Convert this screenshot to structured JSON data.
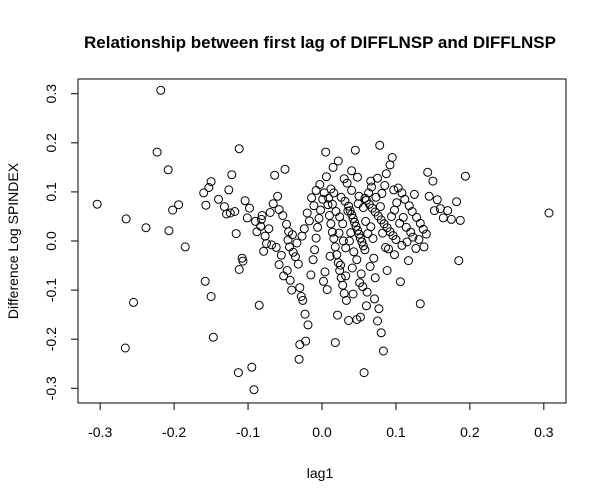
{
  "chart_data": {
    "type": "scatter",
    "title": "Relationship between first lag of DIFFLNSP and DIFFLNSP",
    "xlabel": "lag1",
    "ylabel": "Difference Log SPINDEX",
    "xlim": [
      -0.33,
      0.33
    ],
    "ylim": [
      -0.33,
      0.33
    ],
    "xticks": [
      -0.3,
      -0.2,
      -0.1,
      0.0,
      0.1,
      0.2,
      0.3
    ],
    "yticks": [
      -0.3,
      -0.2,
      -0.1,
      0.0,
      0.1,
      0.2,
      0.3
    ],
    "xtick_labels": [
      "-0.3",
      "-0.2",
      "-0.1",
      "0.0",
      "0.1",
      "0.2",
      "0.3"
    ],
    "ytick_labels": [
      "-0.3",
      "-0.2",
      "-0.1",
      "0.0",
      "0.1",
      "0.2",
      "0.3"
    ],
    "grid": false,
    "marker": "open-circle",
    "points": [
      [
        -0.304,
        0.075
      ],
      [
        -0.265,
        0.045
      ],
      [
        -0.266,
        -0.218
      ],
      [
        -0.255,
        -0.125
      ],
      [
        -0.238,
        0.027
      ],
      [
        -0.218,
        0.307
      ],
      [
        -0.223,
        0.181
      ],
      [
        -0.208,
        0.145
      ],
      [
        -0.207,
        0.021
      ],
      [
        -0.202,
        0.063
      ],
      [
        -0.194,
        0.074
      ],
      [
        -0.185,
        -0.012
      ],
      [
        -0.16,
        0.098
      ],
      [
        -0.157,
        0.073
      ],
      [
        -0.153,
        0.109
      ],
      [
        -0.15,
        0.121
      ],
      [
        -0.158,
        -0.082
      ],
      [
        -0.15,
        -0.113
      ],
      [
        -0.147,
        -0.196
      ],
      [
        -0.129,
        0.055
      ],
      [
        -0.126,
        0.104
      ],
      [
        -0.122,
        0.135
      ],
      [
        -0.124,
        0.057
      ],
      [
        -0.112,
        0.188
      ],
      [
        -0.112,
        -0.058
      ],
      [
        -0.108,
        -0.035
      ],
      [
        -0.107,
        -0.041
      ],
      [
        -0.101,
        0.047
      ],
      [
        -0.095,
        -0.257
      ],
      [
        -0.092,
        -0.303
      ],
      [
        -0.085,
        -0.131
      ],
      [
        -0.113,
        -0.268
      ],
      [
        -0.088,
        0.019
      ],
      [
        -0.083,
        0.03
      ],
      [
        -0.082,
        0.044
      ],
      [
        -0.081,
        0.052
      ],
      [
        -0.079,
        -0.021
      ],
      [
        -0.075,
        -0.005
      ],
      [
        -0.07,
        0.058
      ],
      [
        -0.066,
        0.076
      ],
      [
        -0.064,
        0.134
      ],
      [
        -0.06,
        0.091
      ],
      [
        -0.058,
        0.064
      ],
      [
        -0.053,
        0.052
      ],
      [
        -0.05,
        0.146
      ],
      [
        -0.048,
        0.034
      ],
      [
        -0.046,
        0.002
      ],
      [
        -0.044,
        -0.012
      ],
      [
        -0.039,
        -0.023
      ],
      [
        -0.036,
        -0.032
      ],
      [
        -0.032,
        -0.047
      ],
      [
        -0.03,
        -0.095
      ],
      [
        -0.028,
        -0.113
      ],
      [
        -0.026,
        -0.121
      ],
      [
        -0.023,
        -0.149
      ],
      [
        -0.019,
        -0.171
      ],
      [
        -0.03,
        -0.211
      ],
      [
        -0.031,
        -0.241
      ],
      [
        -0.022,
        -0.204
      ],
      [
        -0.015,
        -0.069
      ],
      [
        -0.012,
        -0.038
      ],
      [
        -0.01,
        -0.018
      ],
      [
        -0.008,
        0.006
      ],
      [
        -0.006,
        0.028
      ],
      [
        -0.004,
        0.046
      ],
      [
        -0.002,
        0.063
      ],
      [
        0.001,
        0.085
      ],
      [
        0.003,
        0.098
      ],
      [
        0.005,
        0.181
      ],
      [
        0.008,
        0.074
      ],
      [
        0.01,
        0.052
      ],
      [
        0.012,
        0.035
      ],
      [
        0.014,
        0.018
      ],
      [
        0.016,
        0.005
      ],
      [
        0.018,
        -0.012
      ],
      [
        0.02,
        -0.028
      ],
      [
        0.022,
        -0.044
      ],
      [
        0.024,
        -0.06
      ],
      [
        0.026,
        -0.075
      ],
      [
        0.028,
        -0.09
      ],
      [
        0.03,
        -0.107
      ],
      [
        0.033,
        -0.121
      ],
      [
        0.021,
        -0.151
      ],
      [
        0.018,
        -0.207
      ],
      [
        0.036,
        0.071
      ],
      [
        0.038,
        0.062
      ],
      [
        0.04,
        0.054
      ],
      [
        0.042,
        0.046
      ],
      [
        0.044,
        0.038
      ],
      [
        0.046,
        0.03
      ],
      [
        0.048,
        0.022
      ],
      [
        0.05,
        0.014
      ],
      [
        0.052,
        0.006
      ],
      [
        0.054,
        -0.002
      ],
      [
        0.056,
        -0.01
      ],
      [
        0.058,
        -0.018
      ],
      [
        0.034,
        0.118
      ],
      [
        0.03,
        0.127
      ],
      [
        0.04,
        0.103
      ],
      [
        0.045,
        0.185
      ],
      [
        0.05,
        0.091
      ],
      [
        0.06,
        0.083
      ],
      [
        0.064,
        0.075
      ],
      [
        0.068,
        0.067
      ],
      [
        0.072,
        0.059
      ],
      [
        0.076,
        0.051
      ],
      [
        0.08,
        0.043
      ],
      [
        0.084,
        0.035
      ],
      [
        0.088,
        0.027
      ],
      [
        0.092,
        0.019
      ],
      [
        0.096,
        0.011
      ],
      [
        0.1,
        0.003
      ],
      [
        0.078,
        0.195
      ],
      [
        0.095,
        0.17
      ],
      [
        0.092,
        0.155
      ],
      [
        0.075,
        0.128
      ],
      [
        0.085,
        0.113
      ],
      [
        0.103,
        0.108
      ],
      [
        0.108,
        0.098
      ],
      [
        0.112,
        0.085
      ],
      [
        0.118,
        0.072
      ],
      [
        0.122,
        0.06
      ],
      [
        0.128,
        0.048
      ],
      [
        0.133,
        0.036
      ],
      [
        0.137,
        0.024
      ],
      [
        0.141,
        0.014
      ],
      [
        0.145,
        0.091
      ],
      [
        0.15,
        0.122
      ],
      [
        0.143,
        0.14
      ],
      [
        0.156,
        0.084
      ],
      [
        0.16,
        0.066
      ],
      [
        0.164,
        0.047
      ],
      [
        0.182,
        0.08
      ],
      [
        0.187,
        0.042
      ],
      [
        0.194,
        0.132
      ],
      [
        0.185,
        -0.04
      ],
      [
        0.307,
        0.057
      ],
      [
        0.17,
        0.062
      ],
      [
        0.133,
        -0.128
      ],
      [
        0.106,
        -0.083
      ],
      [
        0.08,
        -0.187
      ],
      [
        0.083,
        -0.224
      ],
      [
        0.057,
        -0.268
      ],
      [
        0.075,
        -0.163
      ],
      [
        0.06,
        -0.132
      ],
      [
        0.052,
        -0.155
      ],
      [
        0.047,
        -0.16
      ],
      [
        0.042,
        -0.108
      ],
      [
        0.036,
        -0.162
      ],
      [
        0.025,
        -0.049
      ],
      [
        0.032,
        -0.071
      ],
      [
        0.07,
        -0.035
      ],
      [
        0.072,
        -0.075
      ],
      [
        0.065,
        -0.052
      ],
      [
        0.088,
        -0.06
      ],
      [
        0.098,
        -0.028
      ],
      [
        0.108,
        -0.009
      ],
      [
        0.115,
        -0.002
      ],
      [
        0.12,
        0.018
      ],
      [
        0.062,
        0.015
      ],
      [
        0.066,
        0.029
      ],
      [
        0.069,
        0.005
      ],
      [
        0.028,
        0.035
      ],
      [
        0.024,
        0.049
      ],
      [
        0.019,
        0.06
      ],
      [
        0.014,
        0.075
      ],
      [
        0.009,
        0.087
      ],
      [
        -0.017,
        0.041
      ],
      [
        -0.02,
        0.057
      ],
      [
        -0.024,
        0.025
      ],
      [
        -0.027,
        0.01
      ],
      [
        -0.034,
        -0.004
      ],
      [
        -0.04,
        0.013
      ],
      [
        -0.045,
        0.019
      ],
      [
        -0.055,
        -0.029
      ],
      [
        -0.058,
        -0.048
      ],
      [
        -0.062,
        -0.013
      ],
      [
        -0.068,
        -0.008
      ],
      [
        -0.052,
        -0.071
      ],
      [
        -0.047,
        -0.06
      ],
      [
        -0.043,
        -0.08
      ],
      [
        -0.041,
        -0.1
      ],
      [
        0.004,
        -0.063
      ],
      [
        0.002,
        -0.082
      ],
      [
        0.007,
        -0.099
      ],
      [
        0.011,
        -0.031
      ],
      [
        0.037,
        0.0
      ],
      [
        0.039,
        0.017
      ],
      [
        0.043,
        -0.022
      ],
      [
        0.047,
        -0.038
      ],
      [
        0.053,
        -0.067
      ],
      [
        0.055,
        -0.093
      ],
      [
        0.059,
        0.04
      ],
      [
        0.063,
        0.098
      ],
      [
        0.067,
        0.11
      ],
      [
        0.073,
        0.089
      ],
      [
        0.079,
        0.07
      ],
      [
        0.082,
        0.016
      ],
      [
        0.086,
        -0.013
      ],
      [
        0.09,
        -0.016
      ],
      [
        0.094,
        0.05
      ],
      [
        0.098,
        0.063
      ],
      [
        0.101,
        0.078
      ],
      [
        0.105,
        0.036
      ],
      [
        0.11,
        0.048
      ],
      [
        0.114,
        0.028
      ],
      [
        0.117,
        -0.04
      ],
      [
        0.123,
        0.008
      ],
      [
        0.127,
        -0.015
      ],
      [
        0.131,
        0.003
      ],
      [
        0.012,
        0.106
      ],
      [
        0.016,
        0.098
      ],
      [
        0.026,
        0.089
      ],
      [
        0.031,
        0.081
      ],
      [
        0.035,
        0.061
      ],
      [
        0.049,
        0.076
      ],
      [
        0.056,
        0.068
      ],
      [
        0.058,
        0.087
      ],
      [
        -0.008,
        0.103
      ],
      [
        -0.003,
        0.115
      ],
      [
        0.006,
        0.131
      ],
      [
        -0.011,
        0.072
      ],
      [
        -0.014,
        0.088
      ],
      [
        -0.072,
        0.025
      ],
      [
        -0.077,
        0.01
      ],
      [
        -0.09,
        0.04
      ],
      [
        -0.098,
        0.067
      ],
      [
        -0.104,
        0.082
      ],
      [
        0.023,
        0.016
      ],
      [
        0.029,
        0.0
      ],
      [
        0.032,
        -0.014
      ],
      [
        0.041,
        -0.055
      ],
      [
        0.051,
        -0.085
      ],
      [
        0.061,
        -0.104
      ],
      [
        0.071,
        -0.118
      ],
      [
        0.077,
        -0.138
      ],
      [
        0.152,
        0.062
      ],
      [
        0.175,
        0.044
      ],
      [
        0.125,
        0.095
      ],
      [
        0.138,
        -0.012
      ],
      [
        -0.132,
        0.07
      ],
      [
        -0.118,
        0.06
      ],
      [
        -0.14,
        0.085
      ],
      [
        -0.116,
        0.015
      ],
      [
        0.015,
        0.15
      ],
      [
        0.022,
        0.163
      ],
      [
        0.04,
        0.143
      ],
      [
        0.048,
        0.13
      ],
      [
        0.066,
        0.122
      ],
      [
        0.087,
        0.137
      ],
      [
        0.097,
        0.104
      ],
      [
        0.081,
        0.097
      ]
    ]
  }
}
